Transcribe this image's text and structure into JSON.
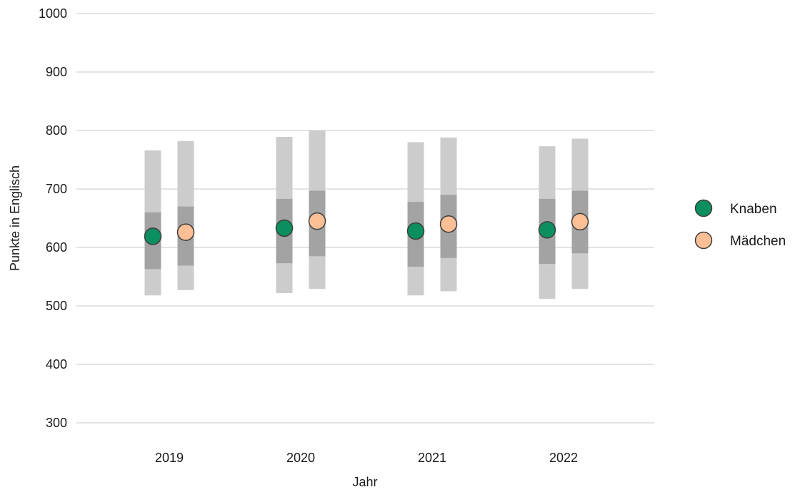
{
  "chart_data": {
    "type": "scatter",
    "xlabel": "Jahr",
    "ylabel": "Punkte in Englisch",
    "ylim": [
      270,
      1010
    ],
    "yticks": [
      300,
      400,
      500,
      600,
      700,
      800,
      900,
      1000
    ],
    "categories": [
      "2019",
      "2020",
      "2021",
      "2022"
    ],
    "grid": "horizontal",
    "legend_position": "right",
    "series": [
      {
        "name": "Knaben",
        "color": "#0b8f5f",
        "values": [
          619,
          633,
          628,
          630
        ],
        "range_outer": [
          [
            518,
            766
          ],
          [
            522,
            789
          ],
          [
            518,
            780
          ],
          [
            512,
            773
          ]
        ],
        "range_inner": [
          [
            563,
            660
          ],
          [
            573,
            683
          ],
          [
            567,
            678
          ],
          [
            572,
            683
          ]
        ]
      },
      {
        "name": "Mädchen",
        "color": "#fdbf95",
        "values": [
          626,
          645,
          640,
          644
        ],
        "range_outer": [
          [
            527,
            782
          ],
          [
            529,
            800
          ],
          [
            525,
            788
          ],
          [
            529,
            786
          ]
        ],
        "range_inner": [
          [
            569,
            670
          ],
          [
            585,
            697
          ],
          [
            582,
            690
          ],
          [
            590,
            697
          ]
        ]
      }
    ]
  }
}
